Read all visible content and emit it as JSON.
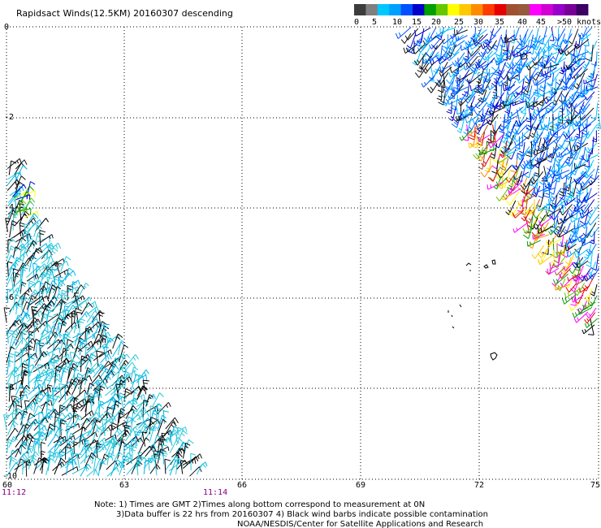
{
  "title": "Rapidsact Winds(12.5KM) 20160307 descending",
  "legend": {
    "colors": [
      "#3c3c3c",
      "#7f7f7f",
      "#00c8ff",
      "#00a0ff",
      "#0050ff",
      "#0000c8",
      "#00a000",
      "#64c800",
      "#ffff00",
      "#ffc800",
      "#ff8c00",
      "#ff3c00",
      "#e60000",
      "#a05030",
      "#965a3c",
      "#ff00ff",
      "#d200d2",
      "#9600c8",
      "#780096",
      "#3c0064"
    ],
    "labels": [
      "0",
      "5",
      "10",
      "15",
      "20",
      "25",
      "30",
      "35",
      "40",
      "45",
      ">50 knots"
    ]
  },
  "axes": {
    "lat_labels": [
      "0",
      "-2",
      "-4",
      "-6",
      "-8",
      "-10"
    ],
    "lon_labels": [
      "60",
      "63",
      "66",
      "69",
      "72",
      "75"
    ]
  },
  "times": {
    "start": "11:12",
    "end": "11:14"
  },
  "notes": [
    "Note: 1) Times are GMT 2)Times along bottom correspond to measurement at 0N",
    "3)Data buffer is 22 hrs from 20160307 4) Black wind barbs indicate possible contamination",
    "NOAA/NESDIS/Center for Satellite Applications and Research"
  ],
  "barb_palette": {
    "left_swath": [
      "#22c8dc",
      "#000000",
      "#00b4e6",
      "#111111",
      "#2ec6d8"
    ],
    "right_swath": [
      "#0050ff",
      "#0064ff",
      "#00a0ff",
      "#0000c8",
      "#00c8ff",
      "#111111"
    ],
    "edge_swath": [
      "#00a000",
      "#64c800",
      "#ffff00",
      "#ffc800",
      "#ff8c00",
      "#e60000",
      "#a05030",
      "#ff00ff",
      "#000000"
    ]
  }
}
